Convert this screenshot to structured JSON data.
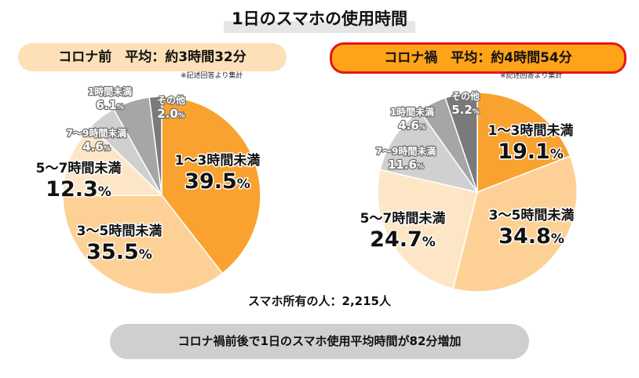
{
  "title": "1日のスマホの使用時間",
  "before": {
    "header": "コロナ前　平均：約3時間32分",
    "note": "※記述回答より集計"
  },
  "after": {
    "header": "コロナ禍　平均：約4時間54分",
    "note": "※記述回答より集計"
  },
  "owner_text": "スマホ所有の人：2,215人",
  "summary_text": "コロナ禍前後で1日のスマホ使用平均時間が82分増加",
  "colors": {
    "c1to3": "#f9a230",
    "c3to5": "#fdd196",
    "c5to7": "#fde6c6",
    "c7to9": "#d0d0d0",
    "cunder1": "#a6a6a6",
    "cother": "#7a7a7a"
  },
  "chart_data": [
    {
      "type": "pie",
      "title": "コロナ前",
      "categories": [
        "1～3時間未満",
        "3～5時間未満",
        "5～7時間未満",
        "7～9時間未満",
        "1時間未満",
        "その他"
      ],
      "values": [
        39.5,
        35.5,
        12.3,
        4.6,
        6.1,
        2.0
      ],
      "labels": [
        "39.5",
        "35.5",
        "12.3",
        "4.6",
        "6.1",
        "2.0"
      ],
      "unit": "%"
    },
    {
      "type": "pie",
      "title": "コロナ禍",
      "categories": [
        "1～3時間未満",
        "3～5時間未満",
        "5～7時間未満",
        "7～9時間未満",
        "1時間未満",
        "その他"
      ],
      "values": [
        19.1,
        34.8,
        24.7,
        11.6,
        4.6,
        5.2
      ],
      "labels": [
        "19.1",
        "34.8",
        "24.7",
        "11.6",
        "4.6",
        "5.2"
      ],
      "unit": "%"
    }
  ]
}
